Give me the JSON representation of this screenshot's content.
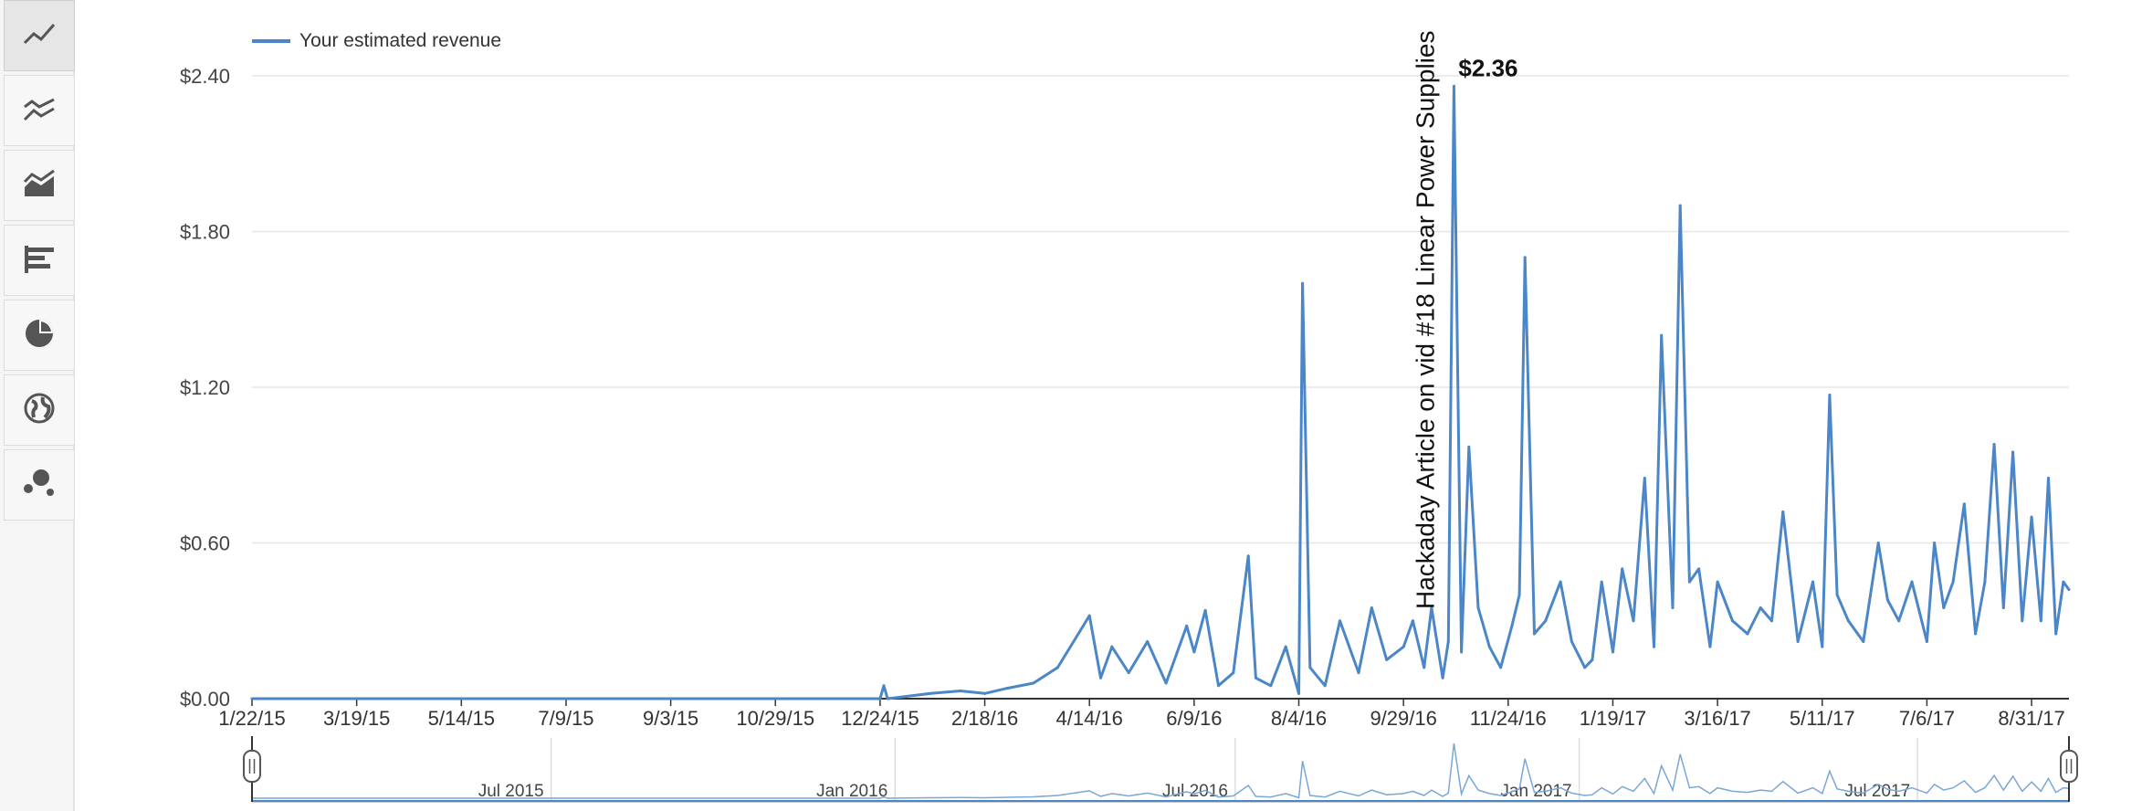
{
  "sidebar": {
    "buttons": [
      {
        "icon": "line-chart-icon",
        "active": true
      },
      {
        "icon": "multi-line-chart-icon",
        "active": false
      },
      {
        "icon": "stacked-area-chart-icon",
        "active": false
      },
      {
        "icon": "bar-chart-icon",
        "active": false
      },
      {
        "icon": "pie-chart-icon",
        "active": false
      },
      {
        "icon": "globe-map-icon",
        "active": false
      },
      {
        "icon": "bubble-chart-icon",
        "active": false
      }
    ]
  },
  "colors": {
    "series": "#4a86c8",
    "grid": "#e6e6e6",
    "axis": "#333333"
  },
  "chart_data": {
    "type": "line",
    "legend": [
      "Your estimated revenue"
    ],
    "legend_position": "top-left",
    "grid": true,
    "y_ticks": [
      "$0.00",
      "$0.60",
      "$1.20",
      "$1.80",
      "$2.40"
    ],
    "y_values": [
      0,
      0.6,
      1.2,
      1.8,
      2.4
    ],
    "ylim": [
      0,
      2.4
    ],
    "x_ticks": [
      "1/22/15",
      "3/19/15",
      "5/14/15",
      "7/9/15",
      "9/3/15",
      "10/29/15",
      "12/24/15",
      "2/18/16",
      "4/14/16",
      "6/9/16",
      "8/4/16",
      "9/29/16",
      "11/24/16",
      "1/19/17",
      "3/16/17",
      "5/11/17",
      "7/6/17",
      "8/31/17"
    ],
    "xlim": [
      "1/22/15",
      "9/20/17"
    ],
    "series": [
      {
        "name": "Your estimated revenue",
        "x": [
          "1/22/15",
          "12/24/15",
          "12/26/15",
          "12/28/15",
          "1/20/16",
          "2/5/16",
          "2/18/16",
          "3/1/16",
          "3/15/16",
          "3/28/16",
          "4/14/16",
          "4/20/16",
          "4/26/16",
          "5/5/16",
          "5/15/16",
          "5/25/16",
          "6/5/16",
          "6/9/16",
          "6/15/16",
          "6/22/16",
          "6/30/16",
          "7/8/16",
          "7/12/16",
          "7/20/16",
          "7/28/16",
          "8/4/16",
          "8/6/16",
          "8/10/16",
          "8/18/16",
          "8/26/16",
          "9/5/16",
          "9/12/16",
          "9/20/16",
          "9/29/16",
          "10/4/16",
          "10/10/16",
          "10/14/16",
          "10/20/16",
          "10/23/16",
          "10/26/16",
          "10/30/16",
          "11/3/16",
          "11/8/16",
          "11/14/16",
          "11/20/16",
          "11/26/16",
          "11/30/16",
          "12/3/16",
          "12/8/16",
          "12/14/16",
          "12/22/16",
          "12/28/16",
          "1/4/17",
          "1/8/17",
          "1/13/17",
          "1/19/17",
          "1/24/17",
          "1/30/17",
          "2/5/17",
          "2/10/17",
          "2/14/17",
          "2/20/17",
          "2/24/17",
          "3/1/17",
          "3/6/17",
          "3/12/17",
          "3/16/17",
          "3/24/17",
          "4/1/17",
          "4/8/17",
          "4/14/17",
          "4/20/17",
          "4/28/17",
          "5/6/17",
          "5/11/17",
          "5/15/17",
          "5/19/17",
          "5/25/17",
          "6/2/17",
          "6/10/17",
          "6/15/17",
          "6/21/17",
          "6/28/17",
          "7/6/17",
          "7/10/17",
          "7/15/17",
          "7/20/17",
          "7/26/17",
          "8/1/17",
          "8/6/17",
          "8/11/17",
          "8/16/17",
          "8/21/17",
          "8/26/17",
          "8/31/17",
          "9/5/17",
          "9/9/17",
          "9/13/17",
          "9/17/17",
          "9/20/17"
        ],
        "values": [
          0,
          0,
          0.05,
          0,
          0.02,
          0.03,
          0.02,
          0.04,
          0.06,
          0.12,
          0.32,
          0.08,
          0.2,
          0.1,
          0.22,
          0.06,
          0.28,
          0.18,
          0.34,
          0.05,
          0.1,
          0.55,
          0.08,
          0.05,
          0.2,
          0.02,
          1.6,
          0.12,
          0.05,
          0.3,
          0.1,
          0.35,
          0.15,
          0.2,
          0.3,
          0.12,
          0.35,
          0.08,
          0.22,
          2.36,
          0.18,
          0.97,
          0.35,
          0.2,
          0.12,
          0.28,
          0.4,
          1.7,
          0.25,
          0.3,
          0.45,
          0.22,
          0.12,
          0.15,
          0.45,
          0.18,
          0.5,
          0.3,
          0.85,
          0.2,
          1.4,
          0.35,
          1.9,
          0.45,
          0.5,
          0.2,
          0.45,
          0.3,
          0.25,
          0.35,
          0.3,
          0.72,
          0.22,
          0.45,
          0.2,
          1.17,
          0.4,
          0.3,
          0.22,
          0.6,
          0.38,
          0.3,
          0.45,
          0.22,
          0.6,
          0.35,
          0.45,
          0.75,
          0.25,
          0.45,
          0.98,
          0.35,
          0.95,
          0.3,
          0.7,
          0.3,
          0.85,
          0.25,
          0.45,
          0.42
        ]
      }
    ],
    "peak_label": "$2.36",
    "annotation": "Hackaday Article on vid #18 Linear Power Supplies",
    "navigator": {
      "labels": [
        "Jul 2015",
        "Jan 2016",
        "Jul 2016",
        "Jan 2017",
        "Jul 2017"
      ],
      "range": [
        "1/22/15",
        "9/20/17"
      ]
    }
  }
}
